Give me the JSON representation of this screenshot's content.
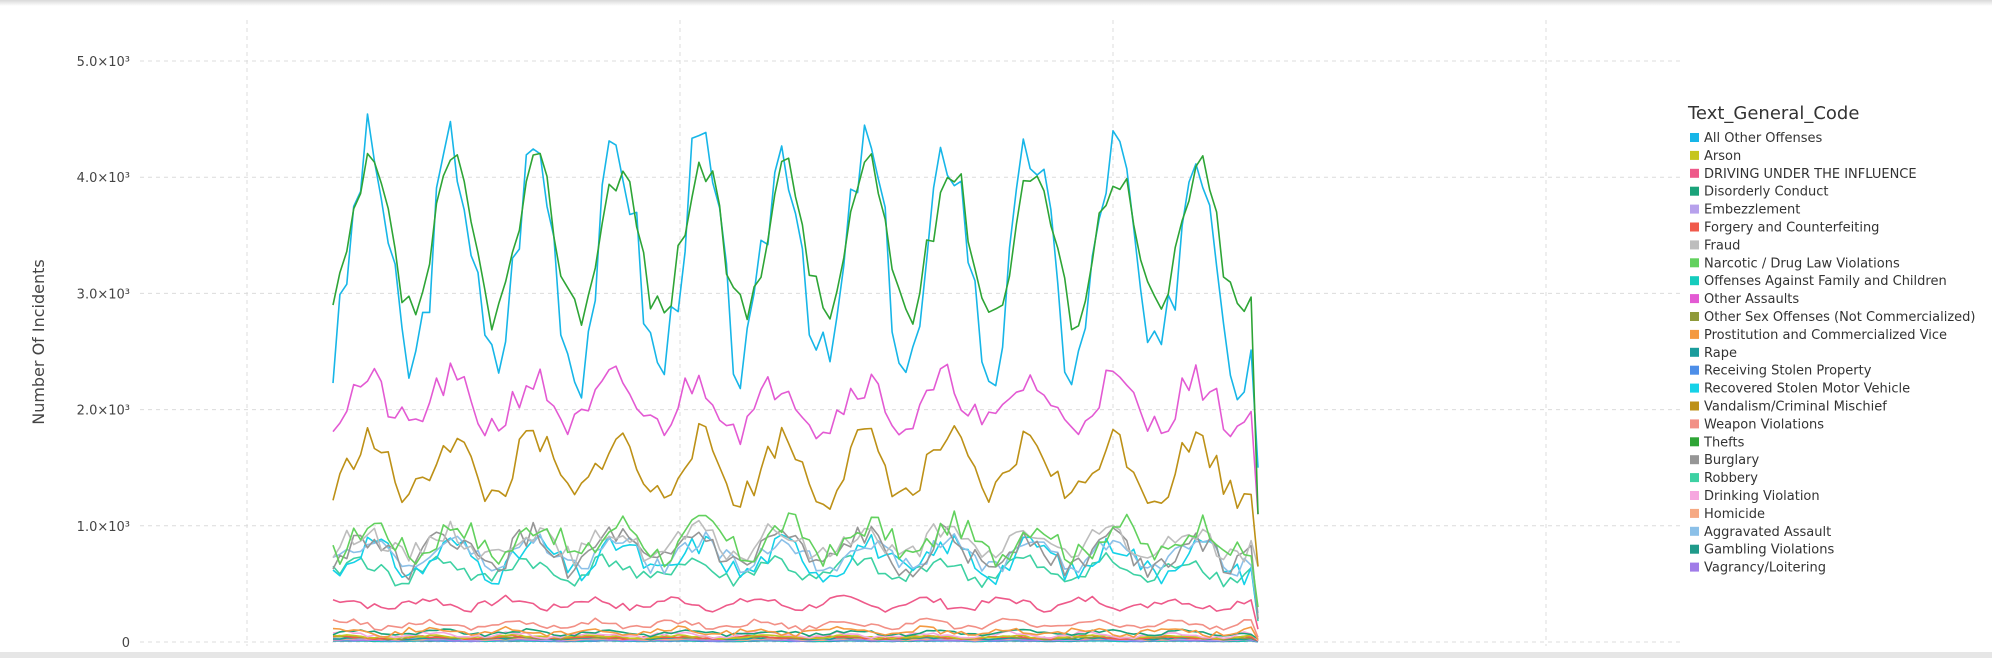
{
  "chart_data": {
    "type": "line",
    "title": "",
    "xlabel": "",
    "ylabel": "Number Of Incidents",
    "ylim": [
      0,
      5500
    ],
    "yticks": [
      0,
      1000,
      2000,
      3000,
      4000,
      5000
    ],
    "ytick_labels": [
      "0",
      "1.0×10³",
      "2.0×10³",
      "3.0×10³",
      "4.0×10³",
      "5.0×10³"
    ],
    "grid": true,
    "legend_position": "right",
    "legend_title": "Text_General_Code",
    "n_points": 135,
    "x": [
      1,
      2,
      3,
      4,
      5,
      6,
      7,
      8,
      9,
      10,
      11,
      12,
      13,
      14,
      15,
      16,
      17,
      18,
      19,
      20,
      21,
      22,
      23,
      24,
      25,
      26,
      27,
      28,
      29,
      30,
      31,
      32,
      33,
      34,
      35,
      36,
      37,
      38,
      39,
      40,
      41,
      42,
      43,
      44,
      45,
      46,
      47,
      48,
      49,
      50,
      51,
      52,
      53,
      54,
      55,
      56,
      57,
      58,
      59,
      60,
      61,
      62,
      63,
      64,
      65,
      66,
      67,
      68,
      69,
      70,
      71,
      72,
      73,
      74,
      75,
      76,
      77,
      78,
      79,
      80,
      81,
      82,
      83,
      84,
      85,
      86,
      87,
      88,
      89,
      90,
      91,
      92,
      93,
      94,
      95,
      96,
      97,
      98,
      99,
      100,
      101,
      102,
      103,
      104,
      105,
      106,
      107,
      108,
      109,
      110,
      111,
      112,
      113,
      114,
      115,
      116,
      117,
      118,
      119,
      120,
      121,
      122,
      123,
      124,
      125,
      126,
      127,
      128,
      129,
      130,
      131,
      132,
      133,
      134,
      135
    ],
    "series": [
      {
        "name": "All Other Offenses",
        "color": "#17b6e8",
        "base": 3300,
        "amp": 950,
        "period": 12,
        "phase": -1.2,
        "noise": 330,
        "seed": 3,
        "end": 1500
      },
      {
        "name": "Arson",
        "color": "#c6c51f",
        "base": 45,
        "amp": 10,
        "period": 12,
        "phase": 0.3,
        "noise": 10,
        "seed": 5,
        "end": 20
      },
      {
        "name": "DRIVING UNDER THE INFLUENCE",
        "color": "#ee5a8a",
        "base": 330,
        "amp": 40,
        "period": 12,
        "phase": 0.8,
        "noise": 35,
        "seed": 7,
        "end": 110
      },
      {
        "name": "Disorderly Conduct",
        "color": "#1aa37a",
        "base": 80,
        "amp": 20,
        "period": 12,
        "phase": -0.5,
        "noise": 15,
        "seed": 9,
        "end": 25
      },
      {
        "name": "Embezzlement",
        "color": "#b7a1ec",
        "base": 25,
        "amp": 5,
        "period": 12,
        "phase": 0.1,
        "noise": 6,
        "seed": 11,
        "end": 8
      },
      {
        "name": "Forgery and Counterfeiting",
        "color": "#f05a4b",
        "base": 40,
        "amp": 8,
        "period": 12,
        "phase": 1.0,
        "noise": 10,
        "seed": 13,
        "end": 12
      },
      {
        "name": "Fraud",
        "color": "#bdbdbd",
        "base": 850,
        "amp": 110,
        "period": 12,
        "phase": -0.8,
        "noise": 90,
        "seed": 15,
        "end": 650
      },
      {
        "name": "Narcotic / Drug Law Violations",
        "color": "#62d15e",
        "base": 880,
        "amp": 140,
        "period": 12,
        "phase": -1.5,
        "noise": 110,
        "seed": 17,
        "end": 300
      },
      {
        "name": "Offenses Against Family and Children",
        "color": "#15ccbd",
        "base": 12,
        "amp": 3,
        "period": 12,
        "phase": 0.2,
        "noise": 4,
        "seed": 19,
        "end": 4
      },
      {
        "name": "Other Assaults",
        "color": "#e35ad3",
        "base": 2050,
        "amp": 200,
        "period": 12,
        "phase": -1.0,
        "noise": 150,
        "seed": 21,
        "end": 1100
      },
      {
        "name": "Other Sex Offenses (Not Commercialized)",
        "color": "#8f9a3a",
        "base": 35,
        "amp": 8,
        "period": 12,
        "phase": 0.4,
        "noise": 8,
        "seed": 23,
        "end": 10
      },
      {
        "name": "Prostitution and Commercialized Vice",
        "color": "#f49a42",
        "base": 90,
        "amp": 25,
        "period": 12,
        "phase": 0.9,
        "noise": 25,
        "seed": 25,
        "end": 20
      },
      {
        "name": "Rape",
        "color": "#1a9c9c",
        "base": 30,
        "amp": 6,
        "period": 12,
        "phase": -0.2,
        "noise": 7,
        "seed": 27,
        "end": 8
      },
      {
        "name": "Receiving Stolen Property",
        "color": "#4d8ee8",
        "base": 10,
        "amp": 2,
        "period": 12,
        "phase": 0.5,
        "noise": 3,
        "seed": 29,
        "end": 3
      },
      {
        "name": "Recovered Stolen Motor Vehicle",
        "color": "#15d2e8",
        "base": 720,
        "amp": 130,
        "period": 12,
        "phase": -1.3,
        "noise": 100,
        "seed": 31,
        "end": 200
      },
      {
        "name": "Vandalism/Criminal Mischief",
        "color": "#bd9117",
        "base": 1500,
        "amp": 250,
        "period": 12,
        "phase": -1.1,
        "noise": 140,
        "seed": 33,
        "end": 650
      },
      {
        "name": "Weapon Violations",
        "color": "#f29086",
        "base": 150,
        "amp": 30,
        "period": 12,
        "phase": 0.6,
        "noise": 25,
        "seed": 35,
        "end": 40
      },
      {
        "name": "Thefts",
        "color": "#2ea536",
        "base": 3450,
        "amp": 620,
        "period": 12,
        "phase": -1.3,
        "noise": 170,
        "seed": 37,
        "end": 1100
      },
      {
        "name": "Burglary",
        "color": "#969696",
        "base": 780,
        "amp": 140,
        "period": 12,
        "phase": -0.9,
        "noise": 110,
        "seed": 39,
        "end": 200
      },
      {
        "name": "Robbery",
        "color": "#3dd1a3",
        "base": 620,
        "amp": 90,
        "period": 12,
        "phase": -0.4,
        "noise": 70,
        "seed": 41,
        "end": 180
      },
      {
        "name": "Drinking Violation",
        "color": "#f6a7df",
        "base": 60,
        "amp": 20,
        "period": 12,
        "phase": 0.7,
        "noise": 15,
        "seed": 43,
        "end": 15
      },
      {
        "name": "Homicide",
        "color": "#f6a983",
        "base": 25,
        "amp": 6,
        "period": 12,
        "phase": -0.6,
        "noise": 6,
        "seed": 45,
        "end": 8
      },
      {
        "name": "Aggravated Assault",
        "color": "#8bc0e8",
        "base": 760,
        "amp": 120,
        "period": 12,
        "phase": -1.2,
        "noise": 80,
        "seed": 47,
        "end": 250
      },
      {
        "name": "Gambling Violations",
        "color": "#1f9a8a",
        "base": 8,
        "amp": 2,
        "period": 12,
        "phase": 0.0,
        "noise": 2,
        "seed": 49,
        "end": 2
      },
      {
        "name": "Vagrancy/Loitering",
        "color": "#a07ce8",
        "base": 15,
        "amp": 4,
        "period": 12,
        "phase": 0.3,
        "noise": 4,
        "seed": 51,
        "end": 4
      }
    ]
  }
}
